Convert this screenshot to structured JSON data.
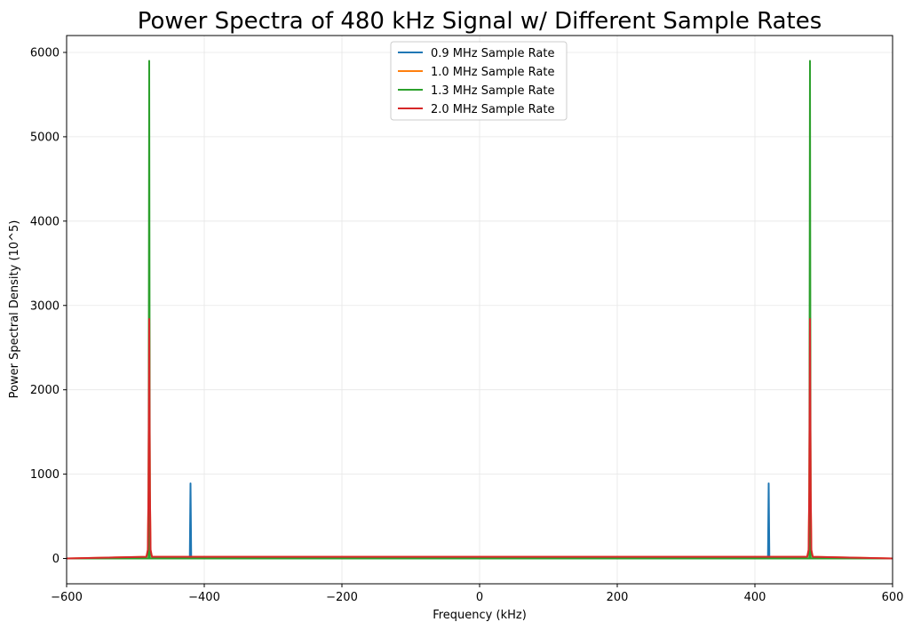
{
  "chart_data": {
    "type": "line",
    "title": "Power Spectra of 480 kHz Signal w/ Different Sample Rates",
    "xlabel": "Frequency (kHz)",
    "ylabel": "Power Spectral Density (10^5)",
    "xlim": [
      -600,
      600
    ],
    "ylim": [
      -300,
      6200
    ],
    "x_ticks": [
      -600,
      -400,
      -200,
      0,
      200,
      400,
      600
    ],
    "y_ticks": [
      0,
      1000,
      2000,
      3000,
      4000,
      5000,
      6000
    ],
    "grid": true,
    "legend_position": "top-center",
    "series": [
      {
        "name": "0.9 MHz Sample Rate",
        "color": "#1f77b4",
        "x": [
          -600,
          -421,
          -420,
          -419,
          419,
          420,
          421,
          600
        ],
        "y": [
          0,
          0,
          890,
          0,
          0,
          890,
          0,
          0
        ]
      },
      {
        "name": "1.0 MHz Sample Rate",
        "color": "#ff7f0e",
        "x": [
          -600,
          -484,
          -482,
          -481,
          -480,
          -479,
          -478,
          -476,
          476,
          478,
          479,
          480,
          481,
          482,
          484,
          600
        ],
        "y": [
          0,
          20,
          100,
          800,
          2840,
          800,
          100,
          20,
          20,
          100,
          800,
          2840,
          800,
          100,
          20,
          0
        ]
      },
      {
        "name": "1.3 MHz Sample Rate",
        "color": "#2ca02c",
        "x": [
          -600,
          -481,
          -480,
          -479,
          479,
          480,
          481,
          600
        ],
        "y": [
          0,
          0,
          5900,
          0,
          0,
          5900,
          0,
          0
        ]
      },
      {
        "name": "2.0 MHz Sample Rate",
        "color": "#d62728",
        "x": [
          -600,
          -484,
          -482,
          -481,
          -480,
          -479,
          -478,
          -476,
          476,
          478,
          479,
          480,
          481,
          482,
          484,
          600
        ],
        "y": [
          0,
          20,
          100,
          800,
          2840,
          800,
          100,
          20,
          20,
          100,
          800,
          2840,
          800,
          100,
          20,
          0
        ]
      }
    ]
  }
}
